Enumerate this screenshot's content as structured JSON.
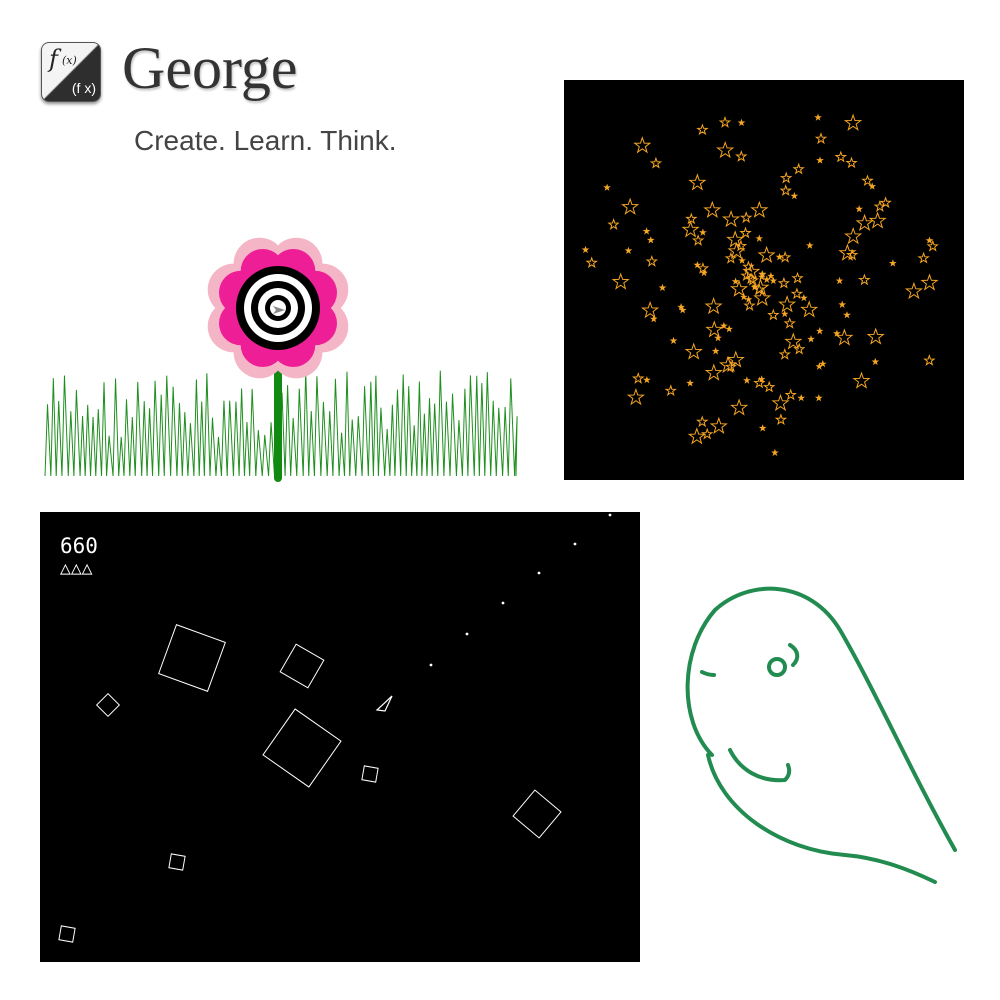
{
  "header": {
    "logo": {
      "f": "f",
      "x_sub": "(x)",
      "fx": "(f x)"
    },
    "title": "George",
    "tagline": "Create. Learn. Think."
  },
  "panels": {
    "flower": {
      "icons": [
        "flower-icon",
        "grass-icon",
        "turtle-cursor-icon"
      ],
      "colors": {
        "petal_outer": "#f4b6c6",
        "petal_inner": "#ee1e96",
        "stem": "#118a11",
        "grass": "#1f8f1f"
      }
    },
    "stars": {
      "background": "#000000",
      "star_color": "#f5a623"
    },
    "asteroids": {
      "score": "660",
      "lives": "△△△",
      "background": "#000000",
      "stroke": "#ffffff"
    },
    "ghost": {
      "icons": [
        "ghost-drawing-icon"
      ],
      "color": "#228b50"
    }
  }
}
